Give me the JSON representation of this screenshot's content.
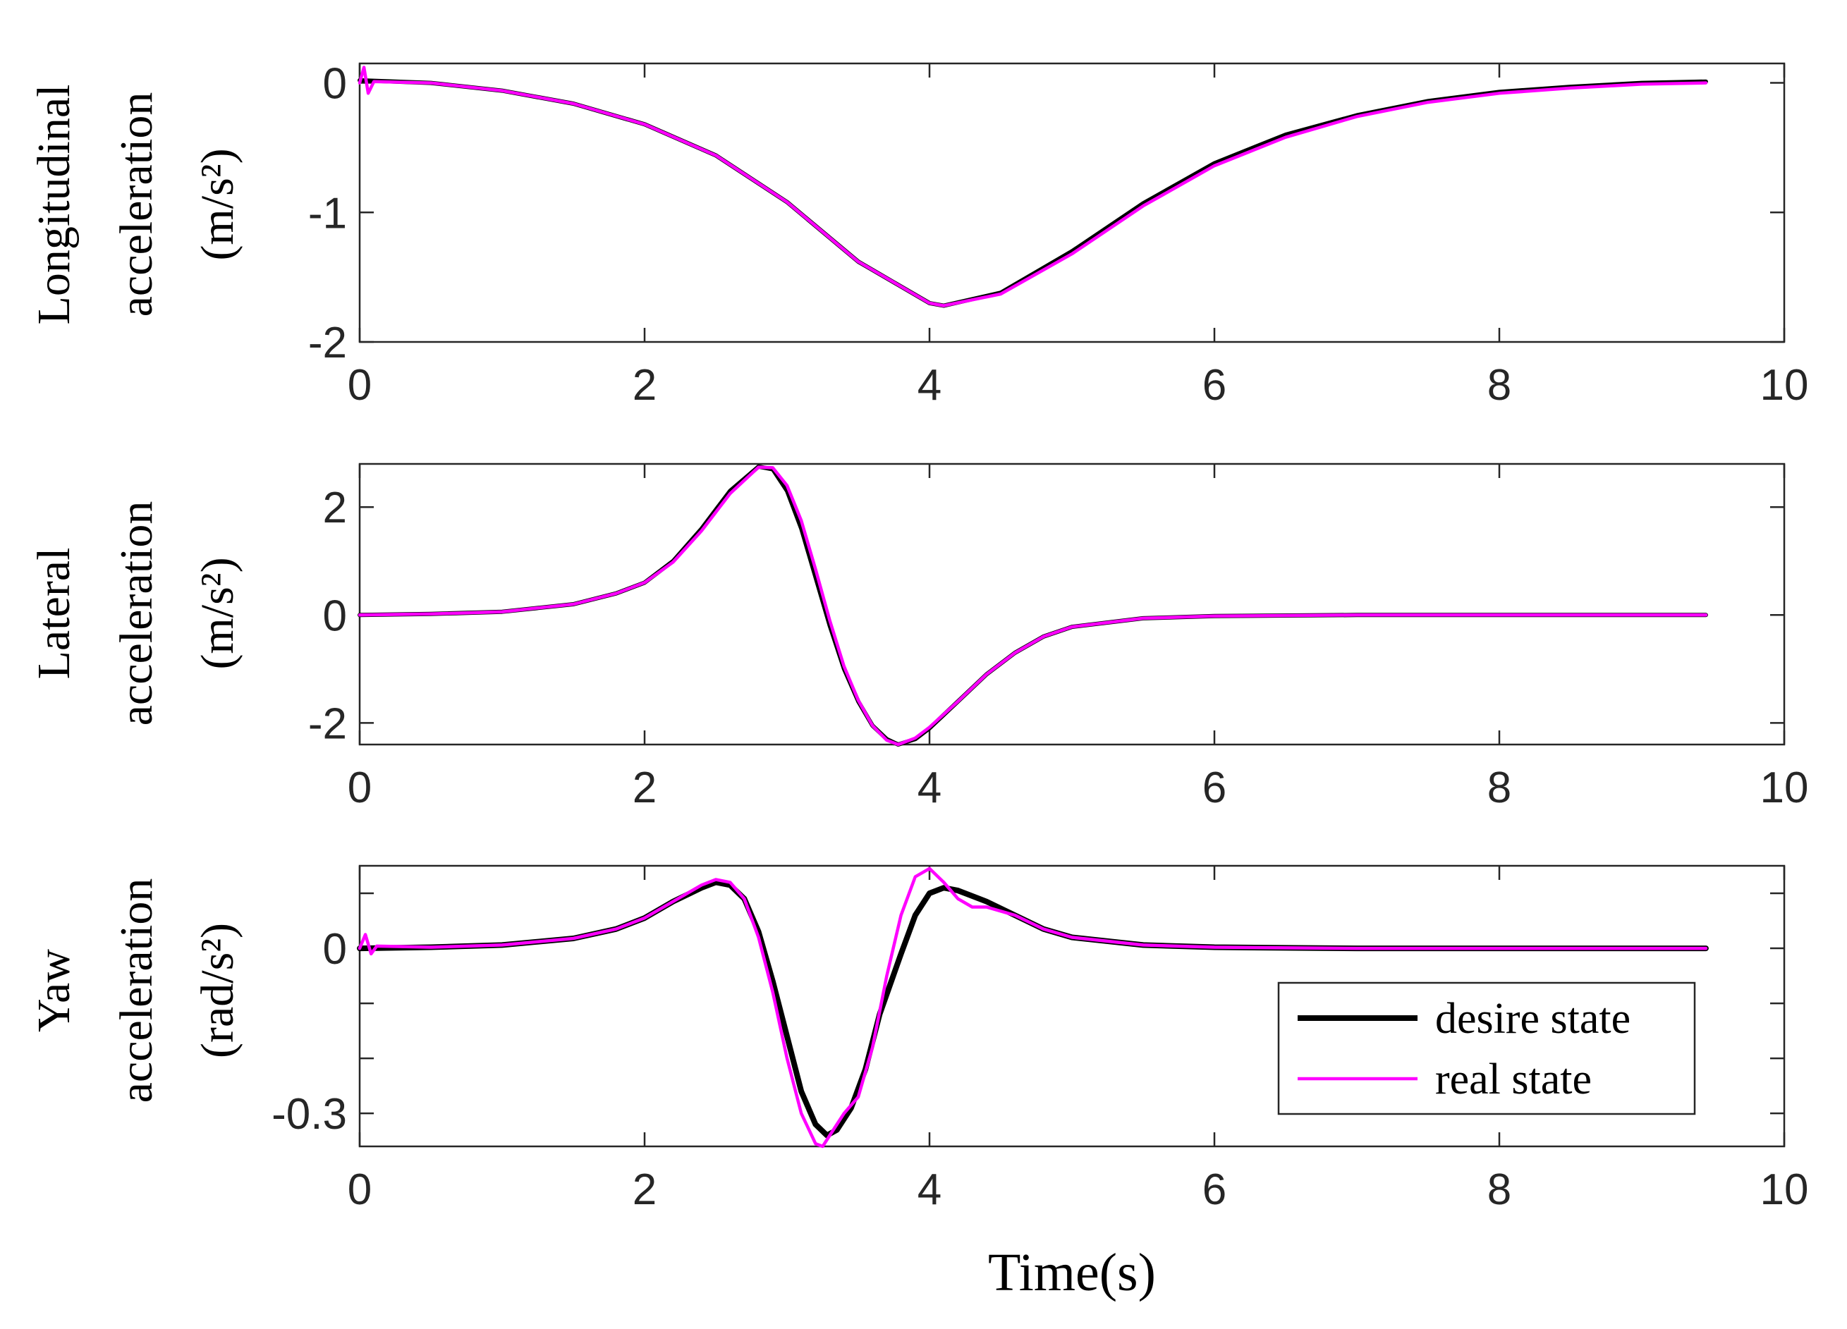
{
  "chart_data": [
    {
      "type": "line",
      "id": "longitudinal",
      "ylabel_lines": [
        "Longitudinal",
        "acceleration",
        "(m/s²)"
      ],
      "xlim": [
        0,
        10
      ],
      "ylim": [
        -2,
        0.15
      ],
      "xticks": [
        0,
        2,
        4,
        6,
        8,
        10
      ],
      "xtick_labels": [
        "0",
        "2",
        "4",
        "6",
        "8",
        "10"
      ],
      "yticks": [
        -2,
        -1,
        0
      ],
      "ytick_labels": [
        "-2",
        "-1",
        "0"
      ],
      "series": [
        {
          "name": "desire state",
          "color": "#000000",
          "x": [
            0,
            0.5,
            1.0,
            1.5,
            2.0,
            2.5,
            3.0,
            3.5,
            4.0,
            4.1,
            4.5,
            5.0,
            5.5,
            6.0,
            6.5,
            7.0,
            7.5,
            8.0,
            8.5,
            9.0,
            9.45
          ],
          "y": [
            0.02,
            0.0,
            -0.06,
            -0.16,
            -0.32,
            -0.56,
            -0.92,
            -1.38,
            -1.7,
            -1.72,
            -1.62,
            -1.3,
            -0.93,
            -0.62,
            -0.4,
            -0.25,
            -0.14,
            -0.07,
            -0.03,
            0.0,
            0.01
          ]
        },
        {
          "name": "real state",
          "color": "#ff00ff",
          "x": [
            0,
            0.03,
            0.06,
            0.1,
            0.5,
            1.0,
            1.5,
            2.0,
            2.5,
            3.0,
            3.5,
            4.0,
            4.1,
            4.5,
            5.0,
            5.5,
            6.0,
            6.5,
            7.0,
            7.5,
            8.0,
            8.5,
            9.0,
            9.45
          ],
          "y": [
            0.0,
            0.12,
            -0.08,
            0.01,
            0.0,
            -0.06,
            -0.16,
            -0.32,
            -0.56,
            -0.92,
            -1.38,
            -1.7,
            -1.72,
            -1.63,
            -1.32,
            -0.95,
            -0.64,
            -0.42,
            -0.26,
            -0.15,
            -0.08,
            -0.04,
            -0.01,
            0.0
          ]
        }
      ]
    },
    {
      "type": "line",
      "id": "lateral",
      "ylabel_lines": [
        "Lateral",
        "acceleration",
        "(m/s²)"
      ],
      "xlim": [
        0,
        10
      ],
      "ylim": [
        -2.4,
        2.8
      ],
      "xticks": [
        0,
        2,
        4,
        6,
        8,
        10
      ],
      "xtick_labels": [
        "0",
        "2",
        "4",
        "6",
        "8",
        "10"
      ],
      "yticks": [
        -2,
        0,
        2
      ],
      "ytick_labels": [
        "-2",
        "0",
        "2"
      ],
      "series": [
        {
          "name": "desire state",
          "color": "#000000",
          "x": [
            0,
            0.5,
            1.0,
            1.5,
            1.8,
            2.0,
            2.2,
            2.4,
            2.6,
            2.8,
            2.9,
            3.0,
            3.1,
            3.2,
            3.3,
            3.4,
            3.5,
            3.6,
            3.7,
            3.78,
            3.9,
            4.0,
            4.2,
            4.4,
            4.6,
            4.8,
            5.0,
            5.5,
            6.0,
            7.0,
            8.0,
            9.0,
            9.45
          ],
          "y": [
            0.0,
            0.02,
            0.06,
            0.2,
            0.4,
            0.6,
            1.0,
            1.6,
            2.3,
            2.75,
            2.7,
            2.3,
            1.6,
            0.7,
            -0.2,
            -1.0,
            -1.6,
            -2.05,
            -2.3,
            -2.4,
            -2.3,
            -2.1,
            -1.6,
            -1.1,
            -0.7,
            -0.4,
            -0.22,
            -0.06,
            -0.02,
            0.0,
            0.0,
            0.0,
            0.0
          ]
        },
        {
          "name": "real state",
          "color": "#ff00ff",
          "x": [
            0,
            0.5,
            1.0,
            1.5,
            1.8,
            2.0,
            2.2,
            2.4,
            2.6,
            2.8,
            2.9,
            3.0,
            3.1,
            3.2,
            3.3,
            3.4,
            3.5,
            3.6,
            3.7,
            3.78,
            3.9,
            4.0,
            4.2,
            4.4,
            4.6,
            4.8,
            5.0,
            5.5,
            6.0,
            7.0,
            8.0,
            9.0,
            9.45
          ],
          "y": [
            0.0,
            0.02,
            0.06,
            0.2,
            0.4,
            0.6,
            0.98,
            1.56,
            2.25,
            2.74,
            2.73,
            2.4,
            1.75,
            0.85,
            -0.1,
            -0.95,
            -1.58,
            -2.05,
            -2.32,
            -2.4,
            -2.28,
            -2.08,
            -1.6,
            -1.1,
            -0.7,
            -0.4,
            -0.22,
            -0.06,
            -0.02,
            0.0,
            0.0,
            0.0,
            0.0
          ]
        }
      ]
    },
    {
      "type": "line",
      "id": "yaw",
      "ylabel_lines": [
        "Yaw",
        "acceleration",
        "(rad/s²)"
      ],
      "xlim": [
        0,
        10
      ],
      "ylim": [
        -0.36,
        0.15
      ],
      "xticks": [
        0,
        2,
        4,
        6,
        8,
        10
      ],
      "xtick_labels": [
        "0",
        "2",
        "4",
        "6",
        "8",
        "10"
      ],
      "yticks": [
        -0.3,
        -0.2,
        -0.1,
        0,
        0.1
      ],
      "ytick_labels": [
        "-0.3",
        "",
        "",
        "0",
        ""
      ],
      "legend": {
        "position": "lower-right",
        "entries": [
          "desire state",
          "real state"
        ]
      },
      "series": [
        {
          "name": "desire state",
          "color": "#000000",
          "x": [
            0,
            0.5,
            1.0,
            1.5,
            1.8,
            2.0,
            2.2,
            2.4,
            2.5,
            2.6,
            2.7,
            2.8,
            2.9,
            3.0,
            3.1,
            3.2,
            3.28,
            3.35,
            3.45,
            3.55,
            3.65,
            3.8,
            3.9,
            4.0,
            4.1,
            4.2,
            4.4,
            4.6,
            4.8,
            5.0,
            5.5,
            6.0,
            7.0,
            8.0,
            9.0,
            9.45
          ],
          "y": [
            0.0,
            0.002,
            0.006,
            0.018,
            0.035,
            0.055,
            0.085,
            0.11,
            0.12,
            0.115,
            0.09,
            0.03,
            -0.06,
            -0.16,
            -0.26,
            -0.32,
            -0.34,
            -0.33,
            -0.29,
            -0.22,
            -0.12,
            -0.01,
            0.06,
            0.1,
            0.11,
            0.105,
            0.085,
            0.06,
            0.035,
            0.02,
            0.006,
            0.002,
            0.0,
            0.0,
            0.0,
            0.0
          ]
        },
        {
          "name": "real state",
          "color": "#ff00ff",
          "x": [
            0,
            0.04,
            0.08,
            0.12,
            0.5,
            1.0,
            1.5,
            1.8,
            2.0,
            2.2,
            2.4,
            2.5,
            2.6,
            2.7,
            2.8,
            2.9,
            3.0,
            3.1,
            3.2,
            3.25,
            3.3,
            3.4,
            3.5,
            3.6,
            3.7,
            3.8,
            3.9,
            4.0,
            4.1,
            4.2,
            4.3,
            4.4,
            4.6,
            4.8,
            5.0,
            5.5,
            6.0,
            7.0,
            8.0,
            9.0,
            9.45
          ],
          "y": [
            0.0,
            0.025,
            -0.01,
            0.004,
            0.002,
            0.006,
            0.018,
            0.035,
            0.055,
            0.085,
            0.115,
            0.125,
            0.12,
            0.09,
            0.02,
            -0.08,
            -0.2,
            -0.3,
            -0.355,
            -0.36,
            -0.34,
            -0.3,
            -0.27,
            -0.18,
            -0.05,
            0.06,
            0.13,
            0.145,
            0.12,
            0.09,
            0.075,
            0.075,
            0.06,
            0.035,
            0.02,
            0.006,
            0.002,
            0.0,
            0.0,
            0.0,
            0.0
          ]
        }
      ]
    }
  ],
  "xlabel": "Time(s)"
}
